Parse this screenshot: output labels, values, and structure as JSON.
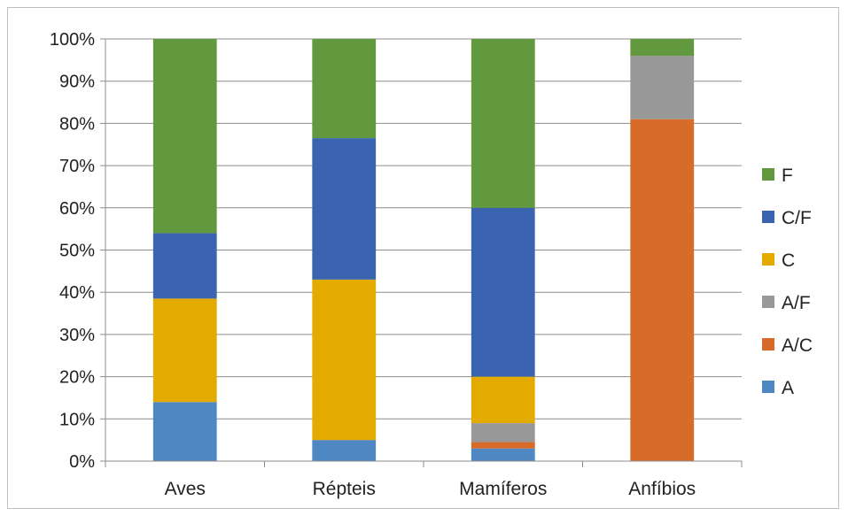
{
  "chart_data": {
    "type": "bar",
    "stacked": true,
    "percent_stacked": true,
    "title": "",
    "xlabel": "",
    "ylabel": "",
    "ylim": [
      0,
      100
    ],
    "y_ticks": [
      "0%",
      "10%",
      "20%",
      "30%",
      "40%",
      "50%",
      "60%",
      "70%",
      "80%",
      "90%",
      "100%"
    ],
    "grid": "horizontal",
    "legend_position": "right",
    "categories": [
      "Aves",
      "Répteis",
      "Mamíferos",
      "Anfíbios"
    ],
    "series": [
      {
        "name": "A",
        "color": "#4f87c3",
        "values": [
          14,
          5,
          3,
          0
        ]
      },
      {
        "name": "A/C",
        "color": "#d66b2a",
        "values": [
          0,
          0,
          1.5,
          81
        ]
      },
      {
        "name": "A/F",
        "color": "#999999",
        "values": [
          0,
          0,
          4.5,
          15
        ]
      },
      {
        "name": "C",
        "color": "#e3ab00",
        "values": [
          24.5,
          38,
          11,
          0
        ]
      },
      {
        "name": "C/F",
        "color": "#3a64b0",
        "values": [
          15.5,
          33.5,
          40,
          0
        ]
      },
      {
        "name": "F",
        "color": "#62993f",
        "values": [
          46,
          23.5,
          40,
          4
        ]
      }
    ]
  }
}
